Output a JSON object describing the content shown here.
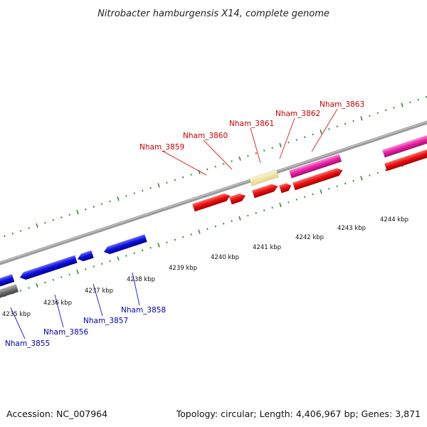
{
  "header": {
    "title": "Nitrobacter hamburgensis X14, complete genome"
  },
  "footer": {
    "accession": "Accession: NC_007964",
    "summary": "Topology: circular; Length: 4,406,967 bp; Genes: 3,871"
  },
  "colors": {
    "background": "#ffffff",
    "backbone": "#8a8a8a",
    "tick": "#2e8b2e",
    "label_forward": "#cc0000",
    "label_reverse": "#0000aa",
    "gene_red": "#ee1111",
    "gene_blue": "#1111dd",
    "gene_magenta": "#ee22aa",
    "gene_pale_yellow": "#f2e6a0",
    "gene_gray": "#707070"
  },
  "scale": {
    "unit": "kbp",
    "labels": [
      "4235 kbp",
      "4236 kbp",
      "4237 kbp",
      "4238 kbp",
      "4239 kbp",
      "4240 kbp",
      "4241 kbp",
      "4242 kbp",
      "4243 kbp",
      "4244 kbp"
    ]
  },
  "genes_forward": [
    {
      "label": "Nham_3859"
    },
    {
      "label": "Nham_3860"
    },
    {
      "label": "Nham_3861"
    },
    {
      "label": "Nham_3862"
    },
    {
      "label": "Nham_3863"
    }
  ],
  "genes_reverse": [
    {
      "label": "Nham_3855"
    },
    {
      "label": "Nham_3856"
    },
    {
      "label": "Nham_3857"
    },
    {
      "label": "Nham_3858"
    }
  ]
}
